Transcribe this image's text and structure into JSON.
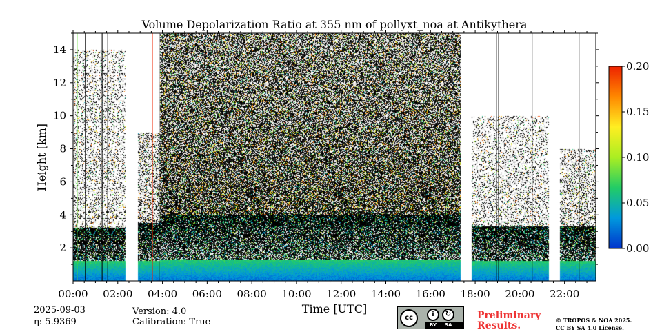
{
  "chart_data": {
    "type": "heatmap",
    "title": "Volume Depolarization Ratio at 355 nm of pollyxt_noa at Antikythera",
    "xlabel": "Time [UTC]",
    "ylabel": "Height [km]",
    "xlim_hours": [
      0.0,
      23.4
    ],
    "ylim_km": [
      0.0,
      15.0
    ],
    "x_ticks": [
      {
        "hour": 0,
        "label": "00:00"
      },
      {
        "hour": 2,
        "label": "02:00"
      },
      {
        "hour": 4,
        "label": "04:00"
      },
      {
        "hour": 6,
        "label": "06:00"
      },
      {
        "hour": 8,
        "label": "08:00"
      },
      {
        "hour": 10,
        "label": "10:00"
      },
      {
        "hour": 12,
        "label": "12:00"
      },
      {
        "hour": 14,
        "label": "14:00"
      },
      {
        "hour": 16,
        "label": "16:00"
      },
      {
        "hour": 18,
        "label": "18:00"
      },
      {
        "hour": 20,
        "label": "20:00"
      },
      {
        "hour": 22,
        "label": "22:00"
      }
    ],
    "y_ticks": [
      {
        "km": 2,
        "label": "2"
      },
      {
        "km": 4,
        "label": "4"
      },
      {
        "km": 6,
        "label": "6"
      },
      {
        "km": 8,
        "label": "8"
      },
      {
        "km": 10,
        "label": "10"
      },
      {
        "km": 12,
        "label": "12"
      },
      {
        "km": 14,
        "label": "14"
      }
    ],
    "colorbar": {
      "range": [
        0.0,
        0.2
      ],
      "ticks": [
        {
          "value": 0.0,
          "label": "0.00"
        },
        {
          "value": 0.05,
          "label": "0.05"
        },
        {
          "value": 0.1,
          "label": "0.10"
        },
        {
          "value": 0.15,
          "label": "0.15"
        },
        {
          "value": 0.2,
          "label": "0.20"
        }
      ],
      "colors": [
        "#0033cc",
        "#0099dd",
        "#22cc66",
        "#aaee22",
        "#ffee22",
        "#ff8800",
        "#ee2200"
      ]
    },
    "no_data_gaps_hours": [
      [
        2.35,
        2.9
      ],
      [
        17.35,
        17.85
      ],
      [
        21.3,
        21.8
      ]
    ],
    "profile_segments": [
      {
        "start_hour": 0.0,
        "end_hour": 2.35,
        "noise_top_km": 14.0,
        "noise_density": 0.22,
        "boundary_layer_km": 3.2,
        "particle_layer_km": 1.2
      },
      {
        "start_hour": 2.9,
        "end_hour": 3.9,
        "noise_top_km": 9.0,
        "noise_density": 0.35,
        "boundary_layer_km": 3.5,
        "particle_layer_km": 1.2
      },
      {
        "start_hour": 3.9,
        "end_hour": 17.35,
        "noise_top_km": 15.0,
        "noise_density": 0.75,
        "boundary_layer_km": 4.0,
        "particle_layer_km": 1.3
      },
      {
        "start_hour": 17.85,
        "end_hour": 21.3,
        "noise_top_km": 10.0,
        "noise_density": 0.22,
        "boundary_layer_km": 3.3,
        "particle_layer_km": 1.2
      },
      {
        "start_hour": 21.8,
        "end_hour": 23.4,
        "noise_top_km": 8.0,
        "noise_density": 0.3,
        "boundary_layer_km": 3.3,
        "particle_layer_km": 1.2
      }
    ],
    "vertical_lines": [
      {
        "hour": 0.18,
        "color": "#55dd22"
      },
      {
        "hour": 0.55,
        "color": "#000000"
      },
      {
        "hour": 1.3,
        "color": "#000000"
      },
      {
        "hour": 1.55,
        "color": "#000000"
      },
      {
        "hour": 3.55,
        "color": "#ee2200"
      },
      {
        "hour": 3.85,
        "color": "#000000"
      },
      {
        "hour": 18.95,
        "color": "#000000"
      },
      {
        "hour": 19.05,
        "color": "#000000"
      },
      {
        "hour": 20.55,
        "color": "#000000"
      },
      {
        "hour": 22.65,
        "color": "#000000"
      }
    ]
  },
  "meta": {
    "date": "2025-09-03",
    "eta": "η: 5.9369",
    "version": "Version: 4.0",
    "calibration": "Calibration: True"
  },
  "license": {
    "preliminary_line1": "Preliminary",
    "preliminary_line2": "Results.",
    "copyright_line1": "© TROPOS & NOA 2025.",
    "copyright_line2": "CC BY SA 4.0 License.",
    "badge_by": "BY",
    "badge_sa": "SA",
    "badge_icon": "cc-by-sa-icon"
  }
}
